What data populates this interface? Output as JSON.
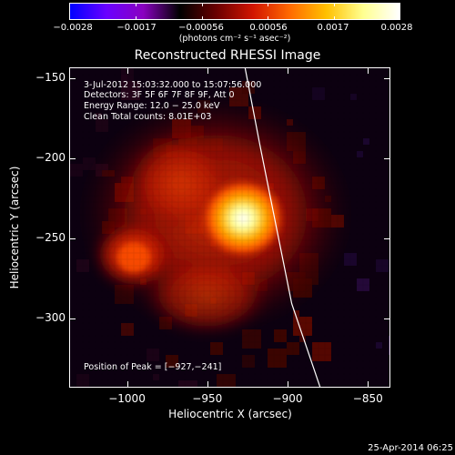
{
  "colorbar": {
    "labels": [
      "−0.0028",
      "−0.0017",
      "−0.00056",
      "0.00056",
      "0.0017",
      "0.0028"
    ],
    "units": "(photons cm⁻² s⁻¹ asec⁻²)",
    "colors": [
      "#0000ff",
      "#6a00ff",
      "#8a00c0",
      "#000000",
      "#6a0000",
      "#d21500",
      "#ff6a00",
      "#ffc000",
      "#ffff90",
      "#ffffff"
    ]
  },
  "title": "Reconstructed RHESSI Image",
  "annotations": {
    "time_range": "3-Jul-2012 15:03:32.000 to 15:07:56.000",
    "detectors": "Detectors: 3F 5F 6F 7F 8F 9F, Att 0",
    "energy": "Energy Range: 12.0 − 25.0 keV",
    "clean": "Clean    Total counts: 8.01E+03",
    "peak": "Position of Peak = [−927,−241]"
  },
  "axes": {
    "xlabel": "Heliocentric X (arcsec)",
    "ylabel": "Heliocentric Y (arcsec)",
    "xticks": [
      {
        "value": -1000,
        "label": "−1000"
      },
      {
        "value": -950,
        "label": "−950"
      },
      {
        "value": -900,
        "label": "−900"
      },
      {
        "value": -850,
        "label": "−850"
      }
    ],
    "yticks": [
      {
        "value": -150,
        "label": "−150"
      },
      {
        "value": -200,
        "label": "−200"
      },
      {
        "value": -250,
        "label": "−250"
      },
      {
        "value": -300,
        "label": "−300"
      }
    ],
    "xlim": [
      -1036,
      -836
    ],
    "ylim": [
      -343,
      -143
    ]
  },
  "limb_curve": [
    [
      -927,
      -143
    ],
    [
      -918,
      -190
    ],
    [
      -908,
      -240
    ],
    [
      -898,
      -290
    ],
    [
      -880,
      -343
    ]
  ],
  "peak_position": [
    -927,
    -241
  ],
  "timestamp": "25-Apr-2014 06:25"
}
